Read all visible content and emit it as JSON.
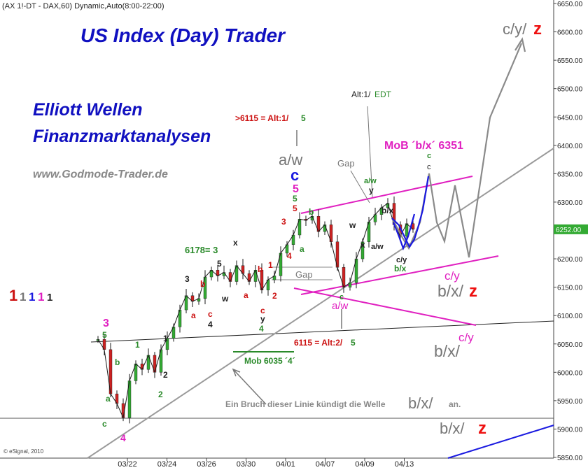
{
  "header": {
    "symbol": "(AX 1!-DT - DAX,60) Dynamic,Auto(8:00-22:00)"
  },
  "texts": {
    "title": "US Index (Day) Trader",
    "subtitle1": "Elliott Wellen",
    "subtitle2": "Finanzmarktanalysen",
    "website": "www.Godmode-Trader.de",
    "copyright": "© eSignal, 2010"
  },
  "colors": {
    "price": "#1a1a1a",
    "up_candle": "#33aa33",
    "down_candle": "#cc2222",
    "trendline": "#9a9a9a",
    "channel": "#e020c0",
    "projection_blue": "#1a1ae0",
    "projection_gray": "#8a8a8a",
    "price_badge": "#33aa33",
    "grid": "#d8d8d8"
  },
  "chart_data": {
    "type": "candlestick",
    "x_tick_labels": [
      "03/22",
      "03/24",
      "03/26",
      "03/30",
      "04/01",
      "04/07",
      "04/09",
      "04/13"
    ],
    "y_ticks": [
      5850,
      5900,
      5950,
      6000,
      6050,
      6100,
      6150,
      6200,
      6250,
      6300,
      6350,
      6400,
      6450,
      6500,
      6550,
      6600,
      6650
    ],
    "y_tick_labels": [
      "5850.00",
      "5900.00",
      "5950.00",
      "6000.00",
      "6050.00",
      "6100.00",
      "6150.00",
      "6200.00",
      "6250.00",
      "6300.00",
      "6350.00",
      "6400.00",
      "6450.00",
      "6500.00",
      "6550.00",
      "6600.00",
      "6650.00"
    ],
    "ylim": [
      5850,
      6650
    ],
    "last_price": 6252,
    "last_price_label": "6252.00",
    "path_close": [
      6058,
      6040,
      5962,
      5945,
      5920,
      5985,
      6015,
      6005,
      6030,
      6000,
      6040,
      6060,
      6080,
      6110,
      6135,
      6125,
      6130,
      6168,
      6180,
      6170,
      6176,
      6160,
      6188,
      6174,
      6160,
      6180,
      6145,
      6163,
      6170,
      6210,
      6225,
      6242,
      6270,
      6268,
      6275,
      6248,
      6260,
      6230,
      6185,
      6150,
      6158,
      6200,
      6230,
      6265,
      6278,
      6290,
      6298,
      6260,
      6240,
      6262,
      6252
    ]
  },
  "annotations": {
    "alt1": ">6115 = Alt:1/",
    "alt1_num": "5",
    "aw_top": "a/w",
    "c_blue": "c",
    "five_magenta": "5",
    "five_green": "5",
    "five_red": "5",
    "alt1_edt_label": "Alt:1/",
    "alt1_edt_value": "EDT",
    "gap_upper": "Gap",
    "gap_mid": "Gap",
    "mob_6351": "MoB ´b/x´ 6351",
    "c_green_top": "c",
    "c_gray_top": "c",
    "aw_green_peak": "a/w",
    "y_peak": "y",
    "bx_peak": "b/x",
    "aw_small": "a/w",
    "cy_small": "c/y",
    "bx_green": "b/x",
    "three_red": "3",
    "four_red": "4",
    "b_green": "b",
    "a_green": "a",
    "w_black_right": "w",
    "x_black_right": "x",
    "v6178": "6178= 3",
    "x_black": "x",
    "five_black": "5",
    "one_red": "1",
    "b_red": "b",
    "two_red": "2",
    "a_red": "a",
    "c_red": "c",
    "y_black": "y",
    "four_green": "4",
    "three_black": "3",
    "b_red_left": "b",
    "w_black": "w",
    "a_red_left": "a",
    "c_red_left": "c",
    "four_black": "4",
    "three_magenta": "3",
    "five_green_left": "5",
    "b_green_left": "b",
    "a_green_left": "a",
    "one_green": "1",
    "one_black": "1",
    "two_green": "2",
    "two_black": "2",
    "c_green_low": "c",
    "four_magenta": "4",
    "degree_1a": "1",
    "degree_1b": "1",
    "degree_1c": "1",
    "degree_1d": "1",
    "degree_1e": "1",
    "c_green_mid": "c",
    "aw_magenta": "a/w",
    "alt2": "6115 = Alt:2/",
    "alt2_num": "5",
    "mob_6035": "Mob 6035 ´4´",
    "break_text": "Ein Bruch dieser Linie kündigt die Welle",
    "break_label": "b/x/",
    "break_suffix": "an.",
    "cyz_top_cy": "c/y/",
    "cyz_top_z": "z",
    "cy_mag_1": "c/y",
    "bxz_mid_bx": "b/x/",
    "bxz_mid_z": "z",
    "cy_mag_2": "c/y",
    "bx_low": "b/x/",
    "bxz_bot_bx": "b/x/",
    "bxz_bot_z": "z"
  }
}
